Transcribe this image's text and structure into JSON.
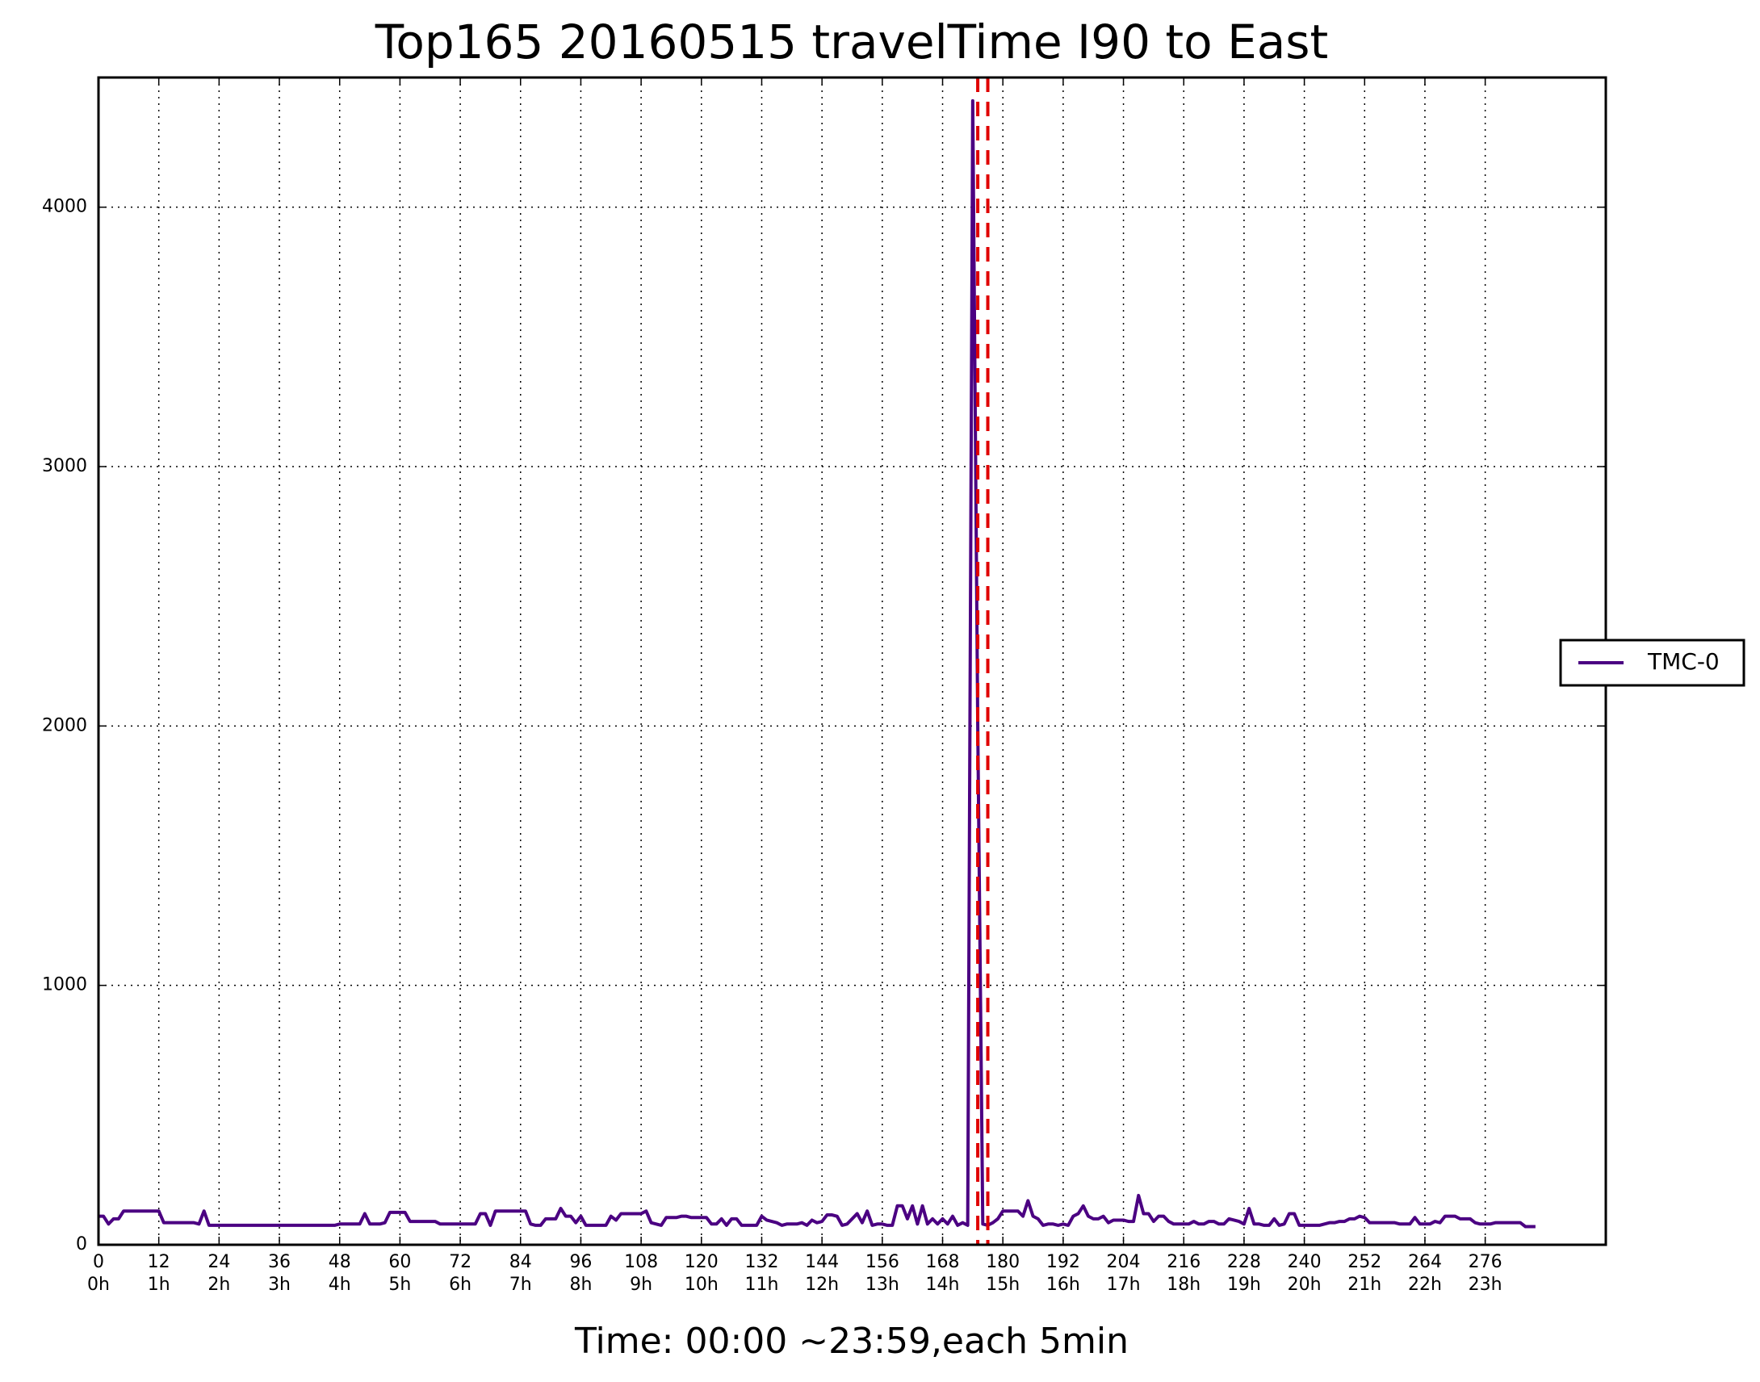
{
  "chart_data": {
    "type": "line",
    "title": "Top165 20160515 travelTime I90 to East",
    "x_label": "Time: 00:00 ~23:59,each 5min",
    "xlim": [
      0,
      300
    ],
    "ylim": [
      0,
      4500
    ],
    "xticks": [
      {
        "value": 0,
        "label": [
          "0",
          "0h"
        ]
      },
      {
        "value": 12,
        "label": [
          "12",
          "1h"
        ]
      },
      {
        "value": 24,
        "label": [
          "24",
          "2h"
        ]
      },
      {
        "value": 36,
        "label": [
          "36",
          "3h"
        ]
      },
      {
        "value": 48,
        "label": [
          "48",
          "4h"
        ]
      },
      {
        "value": 60,
        "label": [
          "60",
          "5h"
        ]
      },
      {
        "value": 72,
        "label": [
          "72",
          "6h"
        ]
      },
      {
        "value": 84,
        "label": [
          "84",
          "7h"
        ]
      },
      {
        "value": 96,
        "label": [
          "96",
          "8h"
        ]
      },
      {
        "value": 108,
        "label": [
          "108",
          "9h"
        ]
      },
      {
        "value": 120,
        "label": [
          "120",
          "10h"
        ]
      },
      {
        "value": 132,
        "label": [
          "132",
          "11h"
        ]
      },
      {
        "value": 144,
        "label": [
          "144",
          "12h"
        ]
      },
      {
        "value": 156,
        "label": [
          "156",
          "13h"
        ]
      },
      {
        "value": 168,
        "label": [
          "168",
          "14h"
        ]
      },
      {
        "value": 180,
        "label": [
          "180",
          "15h"
        ]
      },
      {
        "value": 192,
        "label": [
          "192",
          "16h"
        ]
      },
      {
        "value": 204,
        "label": [
          "204",
          "17h"
        ]
      },
      {
        "value": 216,
        "label": [
          "216",
          "18h"
        ]
      },
      {
        "value": 228,
        "label": [
          "228",
          "19h"
        ]
      },
      {
        "value": 240,
        "label": [
          "240",
          "20h"
        ]
      },
      {
        "value": 252,
        "label": [
          "252",
          "21h"
        ]
      },
      {
        "value": 264,
        "label": [
          "264",
          "22h"
        ]
      },
      {
        "value": 276,
        "label": [
          "276",
          "23h"
        ]
      }
    ],
    "yticks": [
      0,
      1000,
      2000,
      3000,
      4000
    ],
    "grid": true,
    "legend_position": "right",
    "vlines": [
      175,
      177
    ],
    "vline_color": "#e00000",
    "x": [
      0,
      1,
      2,
      3,
      4,
      5,
      6,
      7,
      8,
      9,
      10,
      11,
      12,
      13,
      14,
      15,
      16,
      17,
      18,
      19,
      20,
      21,
      22,
      23,
      24,
      25,
      26,
      27,
      28,
      29,
      30,
      31,
      32,
      33,
      34,
      35,
      36,
      37,
      38,
      39,
      40,
      41,
      42,
      43,
      44,
      45,
      46,
      47,
      48,
      49,
      50,
      51,
      52,
      53,
      54,
      55,
      56,
      57,
      58,
      59,
      60,
      61,
      62,
      63,
      64,
      65,
      66,
      67,
      68,
      69,
      70,
      71,
      72,
      73,
      74,
      75,
      76,
      77,
      78,
      79,
      80,
      81,
      82,
      83,
      84,
      85,
      86,
      87,
      88,
      89,
      90,
      91,
      92,
      93,
      94,
      95,
      96,
      97,
      98,
      99,
      100,
      101,
      102,
      103,
      104,
      105,
      106,
      107,
      108,
      109,
      110,
      111,
      112,
      113,
      114,
      115,
      116,
      117,
      118,
      119,
      120,
      121,
      122,
      123,
      124,
      125,
      126,
      127,
      128,
      129,
      130,
      131,
      132,
      133,
      134,
      135,
      136,
      137,
      138,
      139,
      140,
      141,
      142,
      143,
      144,
      145,
      146,
      147,
      148,
      149,
      150,
      151,
      152,
      153,
      154,
      155,
      156,
      157,
      158,
      159,
      160,
      161,
      162,
      163,
      164,
      165,
      166,
      167,
      168,
      169,
      170,
      171,
      172,
      173,
      174,
      175,
      176,
      177,
      178,
      179,
      180,
      181,
      182,
      183,
      184,
      185,
      186,
      187,
      188,
      189,
      190,
      191,
      192,
      193,
      194,
      195,
      196,
      197,
      198,
      199,
      200,
      201,
      202,
      203,
      204,
      205,
      206,
      207,
      208,
      209,
      210,
      211,
      212,
      213,
      214,
      215,
      216,
      217,
      218,
      219,
      220,
      221,
      222,
      223,
      224,
      225,
      226,
      227,
      228,
      229,
      230,
      231,
      232,
      233,
      234,
      235,
      236,
      237,
      238,
      239,
      240,
      241,
      242,
      243,
      244,
      245,
      246,
      247,
      248,
      249,
      250,
      251,
      252,
      253,
      254,
      255,
      256,
      257,
      258,
      259,
      260,
      261,
      262,
      263,
      264,
      265,
      266,
      267,
      268,
      269,
      270,
      271,
      272,
      273,
      274,
      275,
      276,
      277,
      278,
      279,
      280,
      281,
      282,
      283,
      284,
      285,
      286
    ],
    "series": [
      {
        "name": "TMC-0",
        "color": "#4b0082",
        "values": [
          110,
          110,
          80,
          100,
          100,
          130,
          130,
          130,
          130,
          130,
          130,
          130,
          130,
          85,
          85,
          85,
          85,
          85,
          85,
          85,
          80,
          130,
          75,
          75,
          75,
          75,
          75,
          75,
          75,
          75,
          75,
          75,
          75,
          75,
          75,
          75,
          75,
          75,
          75,
          75,
          75,
          75,
          75,
          75,
          75,
          75,
          75,
          75,
          80,
          80,
          80,
          80,
          80,
          120,
          80,
          80,
          80,
          85,
          125,
          125,
          125,
          125,
          90,
          90,
          90,
          90,
          90,
          90,
          80,
          80,
          80,
          80,
          80,
          80,
          80,
          80,
          120,
          120,
          75,
          130,
          130,
          130,
          130,
          130,
          130,
          130,
          80,
          75,
          75,
          100,
          100,
          100,
          140,
          110,
          110,
          85,
          110,
          75,
          75,
          75,
          75,
          75,
          110,
          95,
          120,
          120,
          120,
          120,
          120,
          130,
          85,
          80,
          75,
          105,
          105,
          105,
          110,
          110,
          105,
          105,
          105,
          105,
          80,
          80,
          100,
          75,
          100,
          100,
          75,
          75,
          75,
          75,
          110,
          95,
          90,
          85,
          75,
          80,
          80,
          80,
          85,
          75,
          95,
          85,
          90,
          115,
          115,
          110,
          75,
          80,
          100,
          120,
          85,
          130,
          75,
          80,
          80,
          75,
          75,
          150,
          150,
          100,
          150,
          80,
          150,
          80,
          100,
          80,
          100,
          80,
          110,
          75,
          85,
          75,
          4410,
          2000,
          80,
          75,
          85,
          100,
          130,
          130,
          130,
          130,
          110,
          170,
          110,
          100,
          75,
          80,
          80,
          75,
          80,
          75,
          110,
          120,
          150,
          110,
          100,
          100,
          110,
          85,
          95,
          95,
          95,
          90,
          90,
          190,
          120,
          120,
          90,
          110,
          110,
          90,
          80,
          80,
          80,
          80,
          90,
          80,
          80,
          90,
          90,
          80,
          80,
          100,
          95,
          90,
          80,
          140,
          80,
          80,
          75,
          75,
          100,
          75,
          80,
          120,
          120,
          75,
          75,
          75,
          75,
          75,
          80,
          85,
          85,
          90,
          90,
          100,
          100,
          110,
          105,
          85,
          85,
          85,
          85,
          85,
          85,
          80,
          80,
          80,
          105,
          80,
          80,
          80,
          90,
          85,
          110,
          110,
          110,
          100,
          100,
          100,
          85,
          80,
          80,
          80,
          85,
          85,
          85,
          85,
          85,
          85,
          70,
          70,
          70
        ]
      }
    ]
  }
}
